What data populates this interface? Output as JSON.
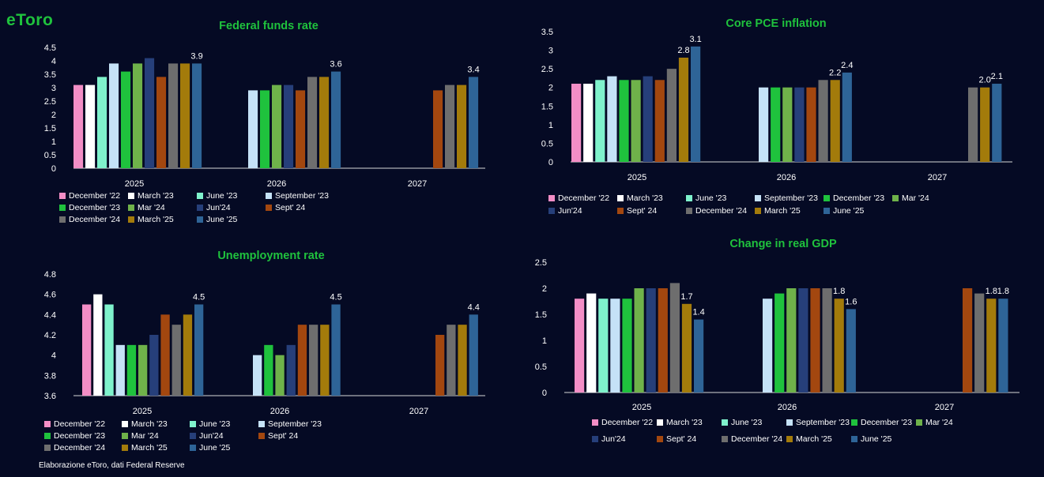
{
  "logo": "eToro",
  "footer": "Elaborazione eToro, dati Federal Reserve",
  "colors": {
    "December '22": "#f38ec6",
    "March '23": "#ffffff",
    "June '23": "#7ff2cc",
    "September '23": "#c5e2f7",
    "December '23": "#1fc23d",
    "Mar '24": "#6fb24a",
    "Jun'24": "#263f7a",
    "Sept' 24": "#a3470f",
    "December '24": "#6e6e6e",
    "March '25": "#a37b0b",
    "June '25": "#2e6497"
  },
  "chart_data": [
    {
      "type": "bar",
      "title": "Federal funds rate",
      "categories": [
        "2025",
        "2026",
        "2027"
      ],
      "ylim": [
        0,
        4.5
      ],
      "yticks": [
        "0",
        "0.5",
        "1",
        "1.5",
        "2",
        "2.5",
        "3",
        "3.5",
        "4",
        "4.5"
      ],
      "series": [
        {
          "name": "December '22",
          "values": [
            3.1,
            null,
            null
          ]
        },
        {
          "name": "March '23",
          "values": [
            3.1,
            null,
            null
          ]
        },
        {
          "name": "June '23",
          "values": [
            3.4,
            null,
            null
          ]
        },
        {
          "name": "September '23",
          "values": [
            3.9,
            2.9,
            null
          ]
        },
        {
          "name": "December '23",
          "values": [
            3.6,
            2.9,
            null
          ]
        },
        {
          "name": "Mar '24",
          "values": [
            3.9,
            3.1,
            null
          ]
        },
        {
          "name": "Jun'24",
          "values": [
            4.1,
            3.1,
            null
          ]
        },
        {
          "name": "Sept' 24",
          "values": [
            3.4,
            2.9,
            2.9
          ]
        },
        {
          "name": "December '24",
          "values": [
            3.9,
            3.4,
            3.1
          ]
        },
        {
          "name": "March '25",
          "values": [
            3.9,
            3.4,
            3.1
          ]
        },
        {
          "name": "June '25",
          "values": [
            3.9,
            3.6,
            3.4
          ]
        }
      ],
      "labels": [
        {
          "series": "June '25",
          "category": "2025",
          "text": "3.9"
        },
        {
          "series": "June '25",
          "category": "2026",
          "text": "3.6"
        },
        {
          "series": "June '25",
          "category": "2027",
          "text": "3.4"
        }
      ],
      "legend": [
        "December '22",
        "March '23",
        "June '23",
        "September '23",
        "December '23",
        "Mar '24",
        "Jun'24",
        "Sept' 24",
        "December '24",
        "March '25",
        "June '25"
      ]
    },
    {
      "type": "bar",
      "title": "Core PCE inflation",
      "categories": [
        "2025",
        "2026",
        "2027"
      ],
      "ylim": [
        0,
        3.5
      ],
      "yticks": [
        "0",
        "0.5",
        "1",
        "1.5",
        "2",
        "2.5",
        "3",
        "3.5"
      ],
      "series": [
        {
          "name": "December '22",
          "values": [
            2.1,
            null,
            null
          ]
        },
        {
          "name": "March '23",
          "values": [
            2.1,
            null,
            null
          ]
        },
        {
          "name": "June '23",
          "values": [
            2.2,
            null,
            null
          ]
        },
        {
          "name": "September '23",
          "values": [
            2.3,
            2.0,
            null
          ]
        },
        {
          "name": "December '23",
          "values": [
            2.2,
            2.0,
            null
          ]
        },
        {
          "name": "Mar '24",
          "values": [
            2.2,
            2.0,
            null
          ]
        },
        {
          "name": "Jun'24",
          "values": [
            2.3,
            2.0,
            null
          ]
        },
        {
          "name": "Sept' 24",
          "values": [
            2.2,
            2.0,
            null
          ]
        },
        {
          "name": "December '24",
          "values": [
            2.5,
            2.2,
            2.0
          ]
        },
        {
          "name": "March '25",
          "values": [
            2.8,
            2.2,
            2.0
          ]
        },
        {
          "name": "June '25",
          "values": [
            3.1,
            2.4,
            2.1
          ]
        }
      ],
      "labels": [
        {
          "series": "March '25",
          "category": "2025",
          "text": "2.8"
        },
        {
          "series": "June '25",
          "category": "2025",
          "text": "3.1"
        },
        {
          "series": "March '25",
          "category": "2026",
          "text": "2.2"
        },
        {
          "series": "June '25",
          "category": "2026",
          "text": "2.4"
        },
        {
          "series": "March '25",
          "category": "2027",
          "text": "2.0"
        },
        {
          "series": "June '25",
          "category": "2027",
          "text": "2.1"
        }
      ],
      "legend": [
        "December '22",
        "March '23",
        "June '23",
        "September '23",
        "December '23",
        "Mar '24",
        "Jun'24",
        "Sept' 24",
        "December '24",
        "March '25",
        "June '25"
      ]
    },
    {
      "type": "bar",
      "title": "Unemployment rate",
      "categories": [
        "2025",
        "2026",
        "2027"
      ],
      "ylim": [
        3.6,
        4.8
      ],
      "yticks": [
        "3.6",
        "3.8",
        "4",
        "4.2",
        "4.4",
        "4.6",
        "4.8"
      ],
      "series": [
        {
          "name": "December '22",
          "values": [
            4.5,
            null,
            null
          ]
        },
        {
          "name": "March '23",
          "values": [
            4.6,
            null,
            null
          ]
        },
        {
          "name": "June '23",
          "values": [
            4.5,
            null,
            null
          ]
        },
        {
          "name": "September '23",
          "values": [
            4.1,
            4.0,
            null
          ]
        },
        {
          "name": "December '23",
          "values": [
            4.1,
            4.1,
            null
          ]
        },
        {
          "name": "Mar '24",
          "values": [
            4.1,
            4.0,
            null
          ]
        },
        {
          "name": "Jun'24",
          "values": [
            4.2,
            4.1,
            null
          ]
        },
        {
          "name": "Sept' 24",
          "values": [
            4.4,
            4.3,
            4.2
          ]
        },
        {
          "name": "December '24",
          "values": [
            4.3,
            4.3,
            4.3
          ]
        },
        {
          "name": "March '25",
          "values": [
            4.4,
            4.3,
            4.3
          ]
        },
        {
          "name": "June '25",
          "values": [
            4.5,
            4.5,
            4.4
          ]
        }
      ],
      "labels": [
        {
          "series": "June '25",
          "category": "2025",
          "text": "4.5"
        },
        {
          "series": "June '25",
          "category": "2026",
          "text": "4.5"
        },
        {
          "series": "June '25",
          "category": "2027",
          "text": "4.4"
        }
      ],
      "legend": [
        "December '22",
        "March '23",
        "June '23",
        "September '23",
        "December '23",
        "Mar '24",
        "Jun'24",
        "Sept' 24",
        "December '24",
        "March '25",
        "June '25"
      ]
    },
    {
      "type": "bar",
      "title": "Change in real GDP",
      "categories": [
        "2025",
        "2026",
        "2027"
      ],
      "ylim": [
        0,
        2.5
      ],
      "yticks": [
        "0",
        "0.5",
        "1",
        "1.5",
        "2",
        "2.5"
      ],
      "series": [
        {
          "name": "December '22",
          "values": [
            1.8,
            null,
            null
          ]
        },
        {
          "name": "March '23",
          "values": [
            1.9,
            null,
            null
          ]
        },
        {
          "name": "June '23",
          "values": [
            1.8,
            null,
            null
          ]
        },
        {
          "name": "September '23",
          "values": [
            1.8,
            1.8,
            null
          ]
        },
        {
          "name": "December '23",
          "values": [
            1.8,
            1.9,
            null
          ]
        },
        {
          "name": "Mar '24",
          "values": [
            2.0,
            2.0,
            null
          ]
        },
        {
          "name": "Jun'24",
          "values": [
            2.0,
            2.0,
            null
          ]
        },
        {
          "name": "Sept' 24",
          "values": [
            2.0,
            2.0,
            2.0
          ]
        },
        {
          "name": "December '24",
          "values": [
            2.1,
            2.0,
            1.9
          ]
        },
        {
          "name": "March '25",
          "values": [
            1.7,
            1.8,
            1.8
          ]
        },
        {
          "name": "June '25",
          "values": [
            1.4,
            1.6,
            1.8
          ]
        }
      ],
      "labels": [
        {
          "series": "March '25",
          "category": "2025",
          "text": "1.7"
        },
        {
          "series": "June '25",
          "category": "2025",
          "text": "1.4"
        },
        {
          "series": "March '25",
          "category": "2026",
          "text": "1.8"
        },
        {
          "series": "June '25",
          "category": "2026",
          "text": "1.6"
        },
        {
          "series": "March '25",
          "category": "2027",
          "text": "1.8"
        },
        {
          "series": "June '25",
          "category": "2027",
          "text": "1.8"
        }
      ],
      "legend": [
        "December '22",
        "March '23",
        "June '23",
        "September '23",
        "December '23",
        "Mar '24",
        "Jun'24",
        "Sept' 24",
        "December '24",
        "March '25",
        "June '25"
      ]
    }
  ]
}
